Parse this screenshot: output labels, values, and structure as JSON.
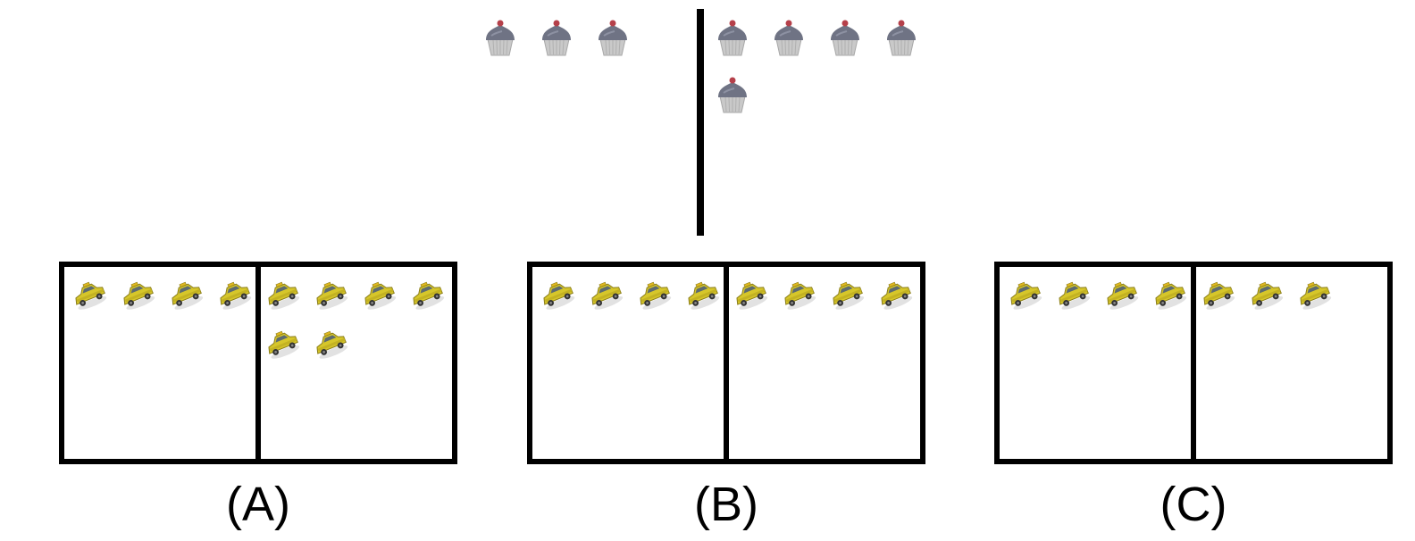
{
  "reference": {
    "left_group": {
      "icon": "cupcake-icon",
      "count": 3
    },
    "right_group": {
      "icon": "cupcake-icon",
      "count": 5
    }
  },
  "options": [
    {
      "label": "(A)",
      "icon": "taxi-icon",
      "left_count": 4,
      "right_count": 6
    },
    {
      "label": "(B)",
      "icon": "taxi-icon",
      "left_count": 4,
      "right_count": 4
    },
    {
      "label": "(C)",
      "icon": "taxi-icon",
      "left_count": 4,
      "right_count": 3
    }
  ],
  "colors": {
    "frame": "#000000",
    "cupcake_frosting": "#6f7384",
    "cupcake_liner": "#c9c9c9",
    "cherry": "#b5404a",
    "taxi_body": "#d6c62a",
    "taxi_shadow": "#8a7d1a"
  }
}
